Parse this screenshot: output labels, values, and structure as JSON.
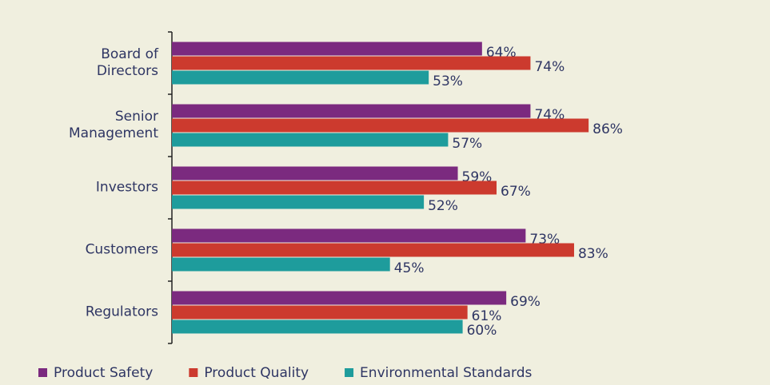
{
  "chart_data": {
    "type": "bar",
    "orientation": "horizontal",
    "categories": [
      "Board of Directors",
      "Senior Management",
      "Investors",
      "Customers",
      "Regulators"
    ],
    "series": [
      {
        "name": "Product Safety",
        "color": "#7b2a7f",
        "values": [
          64,
          74,
          59,
          73,
          69
        ],
        "value_labels": [
          "64%",
          "74%",
          "59%",
          "73%",
          "69%"
        ]
      },
      {
        "name": "Product Quality",
        "color": "#cc3a2e",
        "values": [
          74,
          86,
          67,
          83,
          61
        ],
        "value_labels": [
          "74%",
          "86%",
          "67%",
          "83%",
          "61%"
        ]
      },
      {
        "name": "Environmental Standards",
        "color": "#1e9c9c",
        "values": [
          53,
          57,
          52,
          45,
          60
        ],
        "value_labels": [
          "53%",
          "57%",
          "52%",
          "45%",
          "60%"
        ]
      }
    ],
    "xlim": [
      0,
      100
    ],
    "legend": "bottom"
  }
}
